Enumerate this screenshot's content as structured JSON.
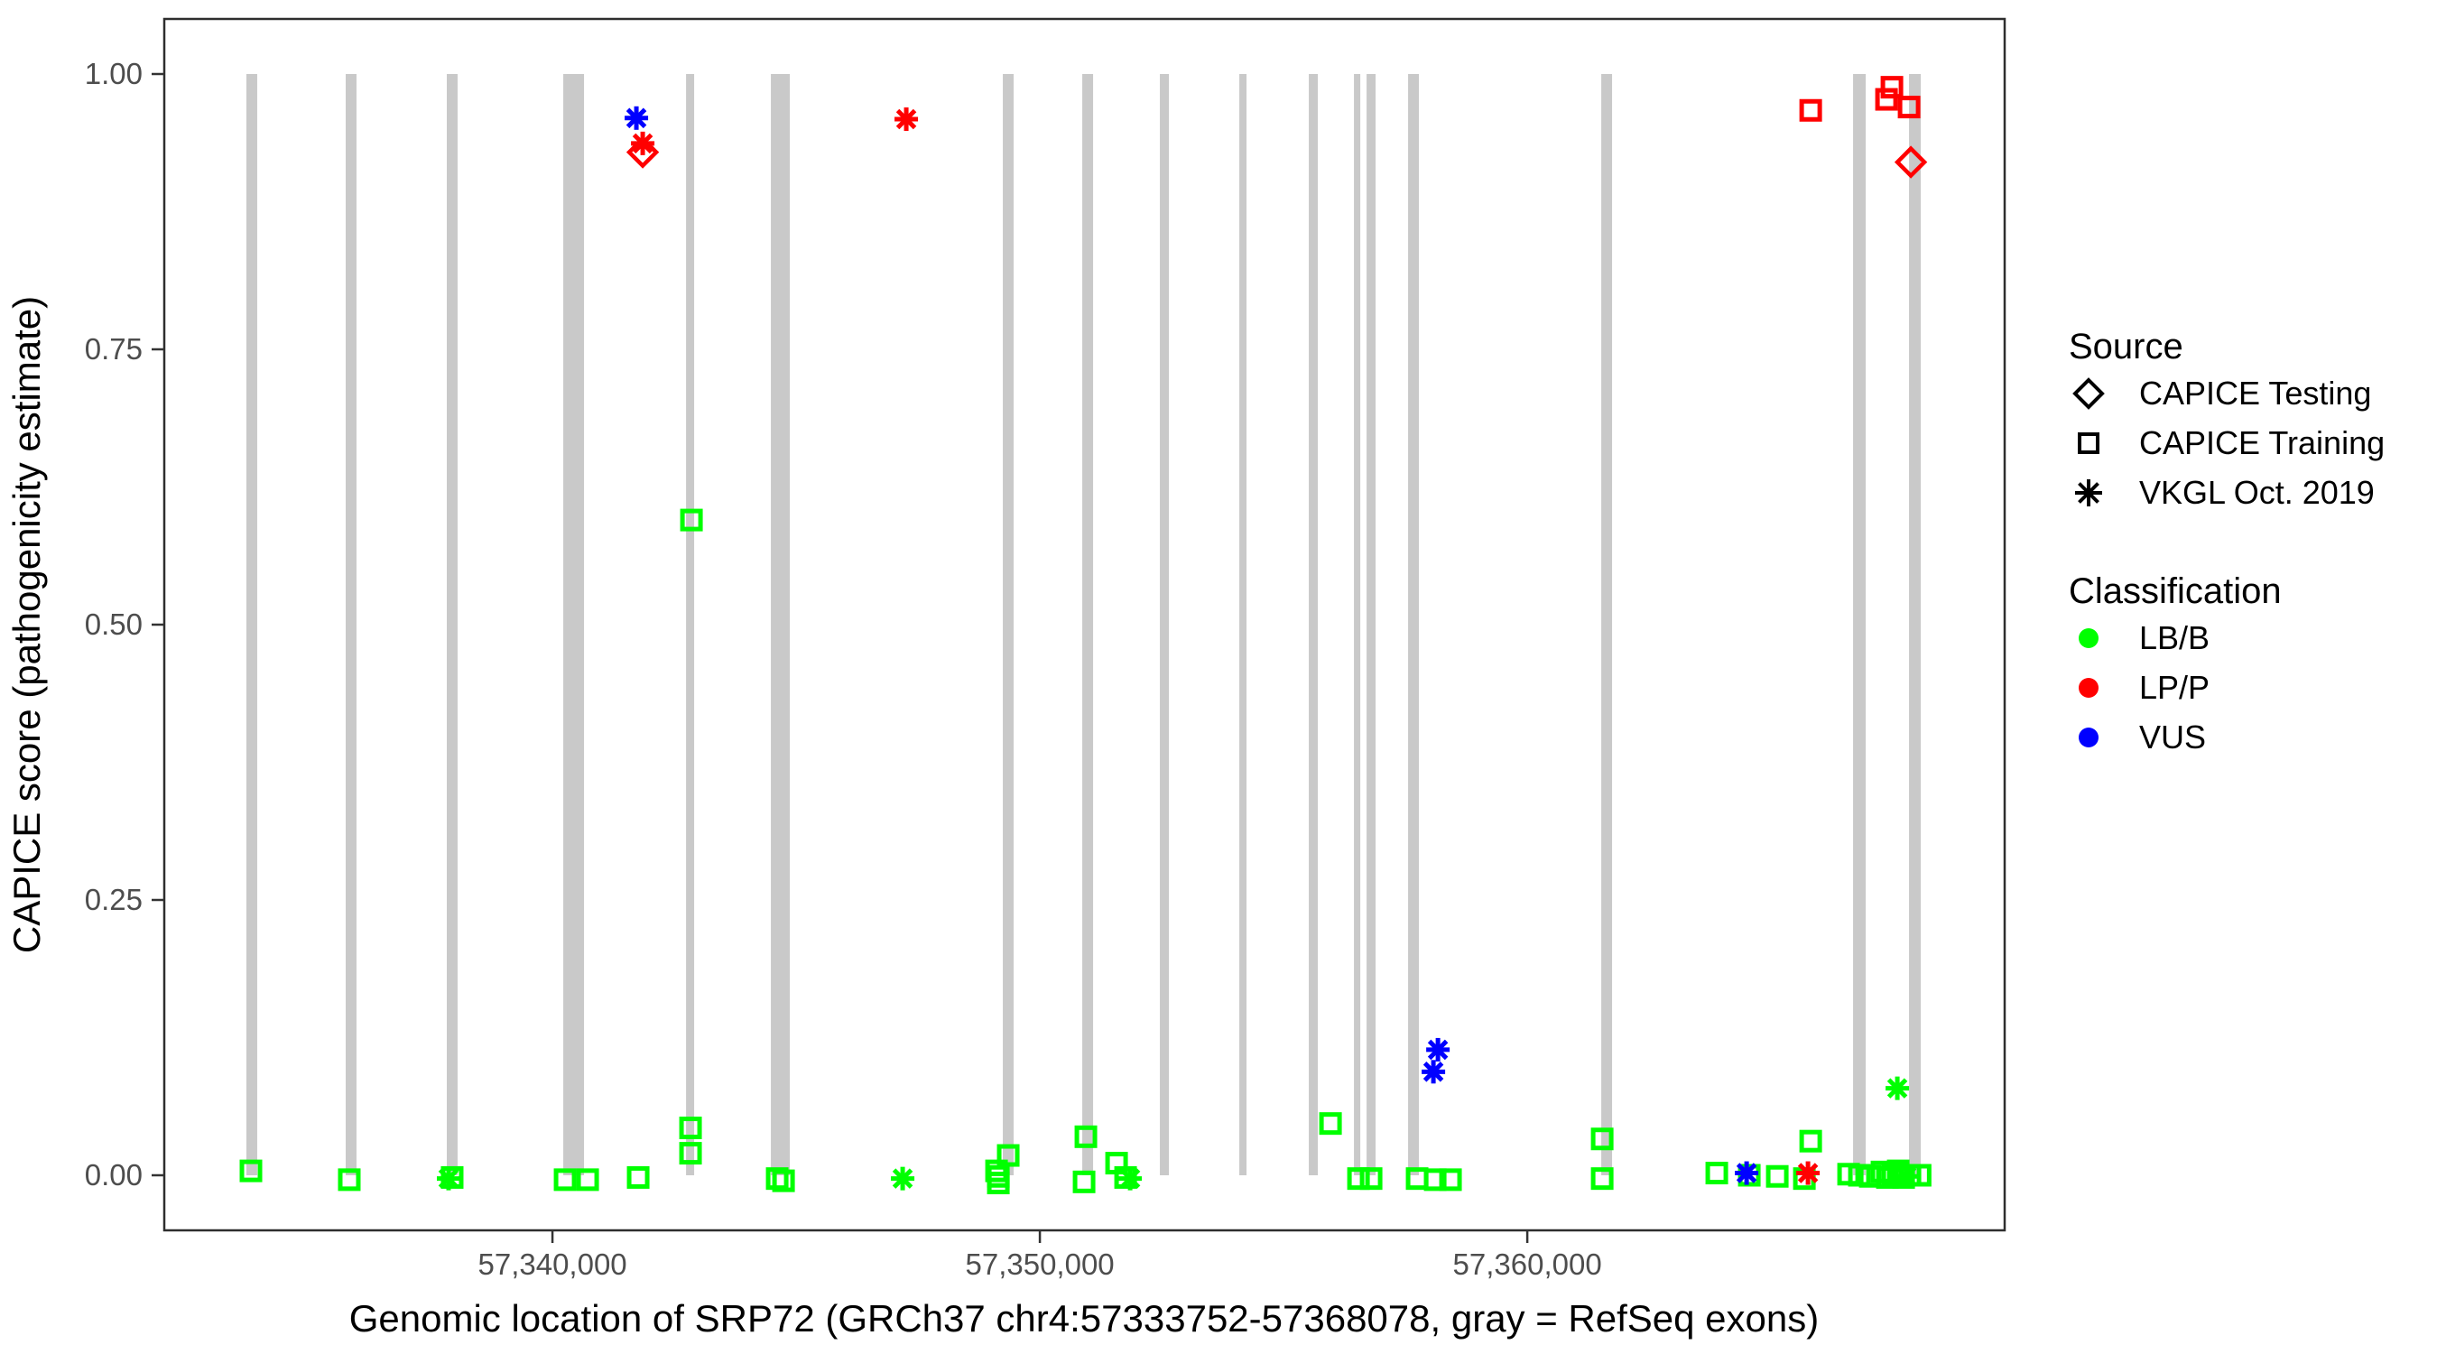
{
  "chart_data": {
    "type": "scatter",
    "title": "",
    "xlabel": "Genomic location of SRP72 (GRCh37 chr4:57333752-57368078, gray = RefSeq exons)",
    "ylabel": "CAPICE score (pathogenicity estimate)",
    "x_domain": [
      57332036,
      57369794
    ],
    "y_domain": [
      -0.05,
      1.05
    ],
    "x_ticks": [
      {
        "value": 57340000,
        "label": "57,340,000"
      },
      {
        "value": 57350000,
        "label": "57,350,000"
      },
      {
        "value": 57360000,
        "label": "57,360,000"
      }
    ],
    "y_ticks": [
      {
        "value": 0.0,
        "label": "0.00"
      },
      {
        "value": 0.25,
        "label": "0.25"
      },
      {
        "value": 0.5,
        "label": "0.50"
      },
      {
        "value": 0.75,
        "label": "0.75"
      },
      {
        "value": 1.0,
        "label": "1.00"
      }
    ],
    "exons": [
      [
        57333721,
        57333943
      ],
      [
        57335758,
        57335980
      ],
      [
        57337832,
        57338054
      ],
      [
        57340222,
        57340648
      ],
      [
        57342741,
        57342907
      ],
      [
        57344481,
        57344870
      ],
      [
        57349240,
        57349462
      ],
      [
        57350870,
        57351092
      ],
      [
        57352462,
        57352648
      ],
      [
        57354092,
        57354240
      ],
      [
        57355518,
        57355703
      ],
      [
        57356444,
        57356574
      ],
      [
        57356703,
        57356888
      ],
      [
        57357555,
        57357777
      ],
      [
        57361518,
        57361740
      ],
      [
        57366684,
        57366944
      ],
      [
        57367832,
        57368073
      ]
    ],
    "points": [
      {
        "g": 57341722,
        "v": 0.96,
        "source": "vkgl",
        "classification": "VUS"
      },
      {
        "g": 57341852,
        "v": 0.937,
        "source": "vkgl",
        "classification": "LP/P"
      },
      {
        "g": 57341852,
        "v": 0.929,
        "source": "testing",
        "classification": "LP/P"
      },
      {
        "g": 57347259,
        "v": 0.959,
        "source": "vkgl",
        "classification": "LP/P"
      },
      {
        "g": 57365815,
        "v": 0.967,
        "source": "training",
        "classification": "LP/P"
      },
      {
        "g": 57367370,
        "v": 0.977,
        "source": "training",
        "classification": "LP/P"
      },
      {
        "g": 57367481,
        "v": 0.988,
        "source": "training",
        "classification": "LP/P"
      },
      {
        "g": 57367833,
        "v": 0.97,
        "source": "training",
        "classification": "LP/P"
      },
      {
        "g": 57367870,
        "v": 0.92,
        "source": "testing",
        "classification": "LP/P"
      },
      {
        "g": 57342852,
        "v": 0.595,
        "source": "training",
        "classification": "LB/B"
      },
      {
        "g": 57358167,
        "v": 0.114,
        "source": "vkgl",
        "classification": "VUS"
      },
      {
        "g": 57358074,
        "v": 0.094,
        "source": "vkgl",
        "classification": "VUS"
      },
      {
        "g": 57333814,
        "v": 0.004,
        "source": "training",
        "classification": "LB/B"
      },
      {
        "g": 57335832,
        "v": -0.004,
        "source": "training",
        "classification": "LB/B"
      },
      {
        "g": 57337943,
        "v": -0.002,
        "source": "training",
        "classification": "LB/B"
      },
      {
        "g": 57337869,
        "v": -0.003,
        "source": "vkgl",
        "classification": "LB/B"
      },
      {
        "g": 57340259,
        "v": -0.004,
        "source": "training",
        "classification": "LB/B"
      },
      {
        "g": 57340722,
        "v": -0.004,
        "source": "training",
        "classification": "LB/B"
      },
      {
        "g": 57341759,
        "v": -0.002,
        "source": "training",
        "classification": "LB/B"
      },
      {
        "g": 57342833,
        "v": 0.043,
        "source": "training",
        "classification": "LB/B"
      },
      {
        "g": 57342833,
        "v": 0.02,
        "source": "training",
        "classification": "LB/B"
      },
      {
        "g": 57344611,
        "v": -0.003,
        "source": "training",
        "classification": "LB/B"
      },
      {
        "g": 57344741,
        "v": -0.005,
        "source": "training",
        "classification": "LB/B"
      },
      {
        "g": 57347185,
        "v": -0.003,
        "source": "vkgl",
        "classification": "LB/B"
      },
      {
        "g": 57349111,
        "v": 0.004,
        "source": "training",
        "classification": "LB/B"
      },
      {
        "g": 57349148,
        "v": -0.001,
        "source": "training",
        "classification": "LB/B"
      },
      {
        "g": 57349148,
        "v": -0.007,
        "source": "training",
        "classification": "LB/B"
      },
      {
        "g": 57349351,
        "v": 0.018,
        "source": "training",
        "classification": "LB/B"
      },
      {
        "g": 57350944,
        "v": 0.035,
        "source": "training",
        "classification": "LB/B"
      },
      {
        "g": 57350907,
        "v": -0.006,
        "source": "training",
        "classification": "LB/B"
      },
      {
        "g": 57351574,
        "v": 0.011,
        "source": "training",
        "classification": "LB/B"
      },
      {
        "g": 57351759,
        "v": -0.002,
        "source": "training",
        "classification": "LB/B"
      },
      {
        "g": 57351852,
        "v": -0.003,
        "source": "vkgl",
        "classification": "LB/B"
      },
      {
        "g": 57355963,
        "v": 0.047,
        "source": "training",
        "classification": "LB/B"
      },
      {
        "g": 57356537,
        "v": -0.003,
        "source": "training",
        "classification": "LB/B"
      },
      {
        "g": 57356796,
        "v": -0.003,
        "source": "training",
        "classification": "LB/B"
      },
      {
        "g": 57357740,
        "v": -0.003,
        "source": "training",
        "classification": "LB/B"
      },
      {
        "g": 57358111,
        "v": -0.004,
        "source": "training",
        "classification": "LB/B"
      },
      {
        "g": 57358425,
        "v": -0.004,
        "source": "training",
        "classification": "LB/B"
      },
      {
        "g": 57361537,
        "v": 0.033,
        "source": "training",
        "classification": "LB/B"
      },
      {
        "g": 57361537,
        "v": -0.003,
        "source": "training",
        "classification": "LB/B"
      },
      {
        "g": 57363888,
        "v": 0.002,
        "source": "training",
        "classification": "LB/B"
      },
      {
        "g": 57364555,
        "v": 0.0,
        "source": "training",
        "classification": "LB/B"
      },
      {
        "g": 57364500,
        "v": 0.002,
        "source": "vkgl",
        "classification": "VUS"
      },
      {
        "g": 57365129,
        "v": -0.001,
        "source": "training",
        "classification": "LB/B"
      },
      {
        "g": 57365815,
        "v": 0.031,
        "source": "training",
        "classification": "LB/B"
      },
      {
        "g": 57365685,
        "v": -0.003,
        "source": "training",
        "classification": "LB/B"
      },
      {
        "g": 57365759,
        "v": 0.002,
        "source": "vkgl",
        "classification": "LP/P"
      },
      {
        "g": 57366592,
        "v": 0.001,
        "source": "training",
        "classification": "LB/B"
      },
      {
        "g": 57366814,
        "v": 0.0,
        "source": "training",
        "classification": "LB/B"
      },
      {
        "g": 57367592,
        "v": 0.079,
        "source": "vkgl",
        "classification": "LB/B"
      },
      {
        "g": 57367037,
        "v": -0.001,
        "source": "training",
        "classification": "LB/B"
      },
      {
        "g": 57367277,
        "v": 0.003,
        "source": "training",
        "classification": "LB/B"
      },
      {
        "g": 57367388,
        "v": -0.002,
        "source": "training",
        "classification": "LB/B"
      },
      {
        "g": 57367500,
        "v": 0.001,
        "source": "training",
        "classification": "LB/B"
      },
      {
        "g": 57367611,
        "v": 0.004,
        "source": "training",
        "classification": "LB/B"
      },
      {
        "g": 57367722,
        "v": -0.002,
        "source": "training",
        "classification": "LB/B"
      },
      {
        "g": 57367777,
        "v": -0.001,
        "source": "vkgl",
        "classification": "LB/B"
      },
      {
        "g": 57367851,
        "v": 0.0,
        "source": "training",
        "classification": "LB/B"
      },
      {
        "g": 57368060,
        "v": 0.0,
        "source": "training",
        "classification": "LB/B"
      }
    ]
  },
  "legend": {
    "source": {
      "title": "Source",
      "items": [
        {
          "shape": "diamond",
          "label": "CAPICE Testing"
        },
        {
          "shape": "square",
          "label": "CAPICE Training"
        },
        {
          "shape": "asterisk",
          "label": "VKGL Oct. 2019"
        }
      ]
    },
    "classification": {
      "title": "Classification",
      "items": [
        {
          "label": "LB/B",
          "color": "#00FF00"
        },
        {
          "label": "LP/P",
          "color": "#FF0000"
        },
        {
          "label": "VUS",
          "color": "#0000FF"
        }
      ]
    }
  },
  "colors": {
    "exon": "#C9C9C9",
    "LB/B": "#00FF00",
    "LP/P": "#FF0000",
    "VUS": "#0000FF",
    "axis_text": "#4D4D4D",
    "panel_border": "#2E2E2E"
  }
}
